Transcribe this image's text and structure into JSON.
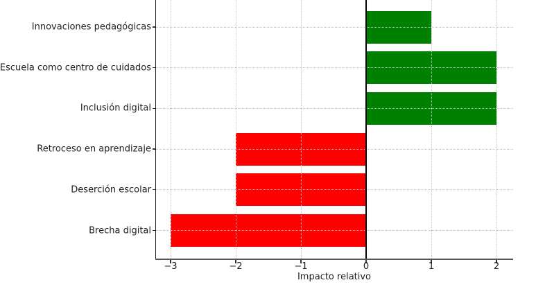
{
  "chart_data": {
    "type": "bar",
    "orientation": "horizontal",
    "title": "",
    "xlabel": "Impacto relativo",
    "ylabel": "",
    "categories": [
      "Innovaciones pedagógicas",
      "Escuela como centro de cuidados",
      "Inclusión digital",
      "Retroceso en aprendizaje",
      "Deserción escolar",
      "Brecha digital"
    ],
    "values": [
      1,
      2,
      2,
      -2,
      -2,
      -3
    ],
    "positive_color": "#008000",
    "negative_color": "#ff0000",
    "xlim": [
      -3.25,
      2.25
    ],
    "x_ticks": [
      -3,
      -2,
      -1,
      0,
      1,
      2
    ],
    "x_tick_labels": [
      "−3",
      "−2",
      "−1",
      "0",
      "1",
      "2"
    ],
    "grid": "dotted",
    "grid_color": "#c3c3c3",
    "zero_line": true,
    "background_color": "#ffffff",
    "bar_relative_height": 0.8,
    "legend": null
  }
}
